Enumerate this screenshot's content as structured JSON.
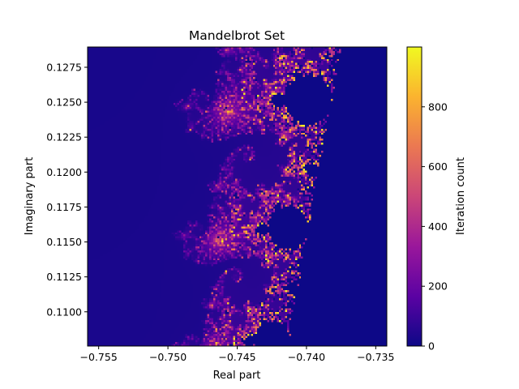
{
  "chart_data": {
    "type": "heatmap",
    "title": "Mandelbrot Set",
    "xlabel": "Real part",
    "ylabel": "Imaginary part",
    "colorbar_label": "Iteration count",
    "colormap": "plasma",
    "colormap_stops": [
      "#0d0887",
      "#5b02a3",
      "#9a179b",
      "#cb4678",
      "#eb7852",
      "#fbb32f",
      "#f0f921"
    ],
    "xlim": [
      -0.7558,
      -0.7342
    ],
    "ylim": [
      0.10755,
      0.12895
    ],
    "clim": [
      0,
      1000
    ],
    "max_iterations": 1000,
    "grid_resolution": [
      150,
      150
    ],
    "xticks": [
      -0.755,
      -0.75,
      -0.745,
      -0.74,
      -0.735
    ],
    "xtick_labels": [
      "−0.755",
      "−0.750",
      "−0.745",
      "−0.740",
      "−0.735"
    ],
    "yticks": [
      0.11,
      0.1125,
      0.115,
      0.1175,
      0.12,
      0.1225,
      0.125,
      0.1275
    ],
    "ytick_labels": [
      "0.1100",
      "0.1125",
      "0.1150",
      "0.1175",
      "0.1200",
      "0.1225",
      "0.1250",
      "0.1275"
    ],
    "colorbar_ticks": [
      0,
      200,
      400,
      600,
      800
    ],
    "colorbar_tick_labels": [
      "0",
      "200",
      "400",
      "600",
      "800"
    ],
    "grid": false,
    "legend": "none"
  }
}
